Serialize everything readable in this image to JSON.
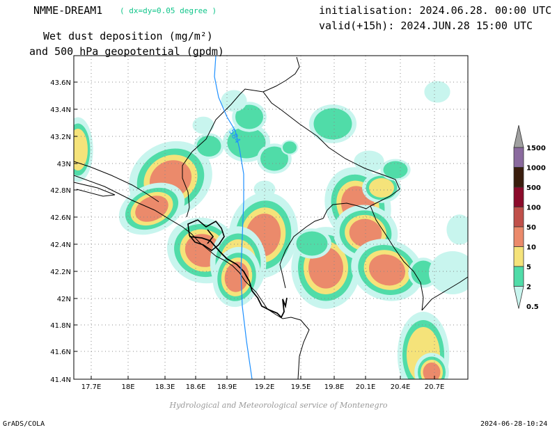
{
  "header": {
    "model_name": "NMME-DREAM1",
    "resolution": "( dx=dy=0.05 degree )",
    "initialisation": "initialisation: 2024.06.28. 00:00 UTC",
    "valid": "valid(+15h): 2024.JUN.28 15:00 UTC",
    "title_line1": "Wet dust deposition (mg/m²)",
    "title_line2": "and 500 hPa geopotential (gpdm)"
  },
  "map": {
    "lon_range": [
      17.5,
      21.0
    ],
    "lat_range": [
      41.4,
      43.75
    ],
    "lon_ticks": [
      "17.7E",
      "18E",
      "18.3E",
      "18.6E",
      "18.9E",
      "19.2E",
      "19.5E",
      "19.8E",
      "20.1E",
      "20.4E",
      "20.7E"
    ],
    "lat_ticks": [
      "41.4N",
      "41.6N",
      "41.8N",
      "42N",
      "42.2N",
      "42.4N",
      "42.6N",
      "42.8N",
      "43N",
      "43.2N",
      "43.4N",
      "43.6N"
    ],
    "contour_label": "584",
    "contour_color": "#1e90ff"
  },
  "legend": {
    "levels": [
      {
        "label": "0.5",
        "color": "#c8f5ee"
      },
      {
        "label": "2",
        "color": "#50dca8"
      },
      {
        "label": "5",
        "color": "#f5e37a"
      },
      {
        "label": "10",
        "color": "#eb8a6b"
      },
      {
        "label": "50",
        "color": "#c0504a"
      },
      {
        "label": "100",
        "color": "#8b0a2a"
      },
      {
        "label": "500",
        "color": "#3a1d0d"
      },
      {
        "label": "1000",
        "color": "#8a6a9e"
      },
      {
        "label": "1500",
        "color": "#a0a0a0"
      }
    ]
  },
  "footer": {
    "credit": "Hydrological and Meteorological service of Montenegro",
    "software": "GrADS/COLA",
    "timestamp": "2024-06-28-10:24"
  }
}
